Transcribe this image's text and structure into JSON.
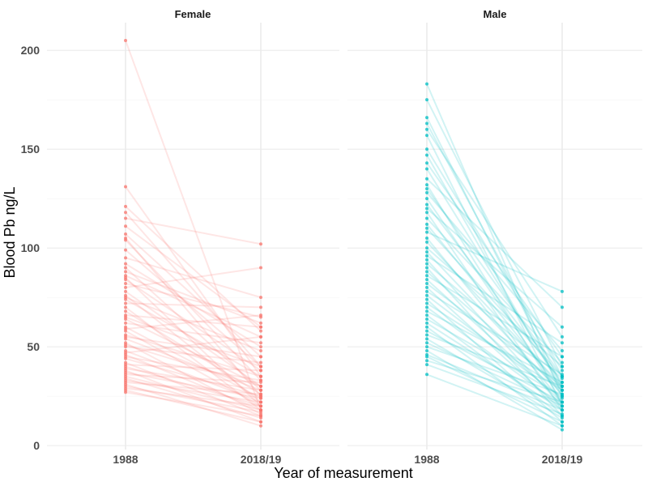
{
  "chart_data": {
    "type": "line",
    "xlabel": "Year of measurement",
    "ylabel": "Blood Pb ng/L",
    "x_categories": [
      "1988",
      "2018/19"
    ],
    "ylim": [
      -2,
      214
    ],
    "y_ticks": [
      0,
      50,
      100,
      150,
      200
    ],
    "grid": true,
    "panels": [
      {
        "name": "Female",
        "color": "#F8766D",
        "pairs": [
          [
            205,
            18
          ],
          [
            131,
            35
          ],
          [
            121,
            58
          ],
          [
            118,
            40
          ],
          [
            115,
            102
          ],
          [
            111,
            60
          ],
          [
            107,
            45
          ],
          [
            105,
            25
          ],
          [
            104,
            33
          ],
          [
            99,
            40
          ],
          [
            95,
            75
          ],
          [
            92,
            50
          ],
          [
            90,
            28
          ],
          [
            88,
            62
          ],
          [
            86,
            55
          ],
          [
            85,
            20
          ],
          [
            84,
            38
          ],
          [
            82,
            65
          ],
          [
            80,
            90
          ],
          [
            78,
            30
          ],
          [
            76,
            22
          ],
          [
            75,
            48
          ],
          [
            74,
            35
          ],
          [
            72,
            70
          ],
          [
            70,
            18
          ],
          [
            68,
            26
          ],
          [
            66,
            60
          ],
          [
            65,
            40
          ],
          [
            64,
            30
          ],
          [
            62,
            52
          ],
          [
            60,
            24
          ],
          [
            59,
            66
          ],
          [
            58,
            20
          ],
          [
            56,
            35
          ],
          [
            55,
            45
          ],
          [
            54,
            28
          ],
          [
            52,
            16
          ],
          [
            51,
            30
          ],
          [
            50,
            42
          ],
          [
            48,
            22
          ],
          [
            47,
            55
          ],
          [
            46,
            18
          ],
          [
            45,
            33
          ],
          [
            44,
            25
          ],
          [
            42,
            15
          ],
          [
            41,
            38
          ],
          [
            40,
            20
          ],
          [
            39,
            28
          ],
          [
            38,
            12
          ],
          [
            37,
            24
          ],
          [
            36,
            32
          ],
          [
            35,
            18
          ],
          [
            34,
            14
          ],
          [
            33,
            22
          ],
          [
            32,
            26
          ],
          [
            31,
            10
          ],
          [
            30,
            17
          ],
          [
            29,
            20
          ],
          [
            28,
            12
          ],
          [
            27,
            15
          ]
        ]
      },
      {
        "name": "Male",
        "color": "#00BFC4",
        "pairs": [
          [
            183,
            25
          ],
          [
            175,
            40
          ],
          [
            166,
            30
          ],
          [
            163,
            35
          ],
          [
            160,
            55
          ],
          [
            157,
            20
          ],
          [
            150,
            38
          ],
          [
            147,
            28
          ],
          [
            143,
            45
          ],
          [
            140,
            30
          ],
          [
            135,
            70
          ],
          [
            132,
            22
          ],
          [
            130,
            35
          ],
          [
            128,
            48
          ],
          [
            125,
            25
          ],
          [
            122,
            32
          ],
          [
            120,
            60
          ],
          [
            118,
            18
          ],
          [
            115,
            42
          ],
          [
            112,
            28
          ],
          [
            110,
            35
          ],
          [
            108,
            78
          ],
          [
            105,
            22
          ],
          [
            103,
            30
          ],
          [
            100,
            40
          ],
          [
            98,
            26
          ],
          [
            96,
            52
          ],
          [
            94,
            20
          ],
          [
            92,
            34
          ],
          [
            90,
            15
          ],
          [
            88,
            28
          ],
          [
            86,
            45
          ],
          [
            84,
            22
          ],
          [
            82,
            30
          ],
          [
            80,
            18
          ],
          [
            78,
            36
          ],
          [
            76,
            24
          ],
          [
            74,
            12
          ],
          [
            72,
            28
          ],
          [
            70,
            20
          ],
          [
            68,
            32
          ],
          [
            66,
            15
          ],
          [
            64,
            25
          ],
          [
            62,
            18
          ],
          [
            60,
            10
          ],
          [
            58,
            22
          ],
          [
            56,
            30
          ],
          [
            54,
            14
          ],
          [
            52,
            20
          ],
          [
            50,
            26
          ],
          [
            48,
            8
          ],
          [
            46,
            18
          ],
          [
            45,
            12
          ],
          [
            43,
            22
          ],
          [
            41,
            16
          ],
          [
            36,
            10
          ]
        ]
      }
    ]
  }
}
